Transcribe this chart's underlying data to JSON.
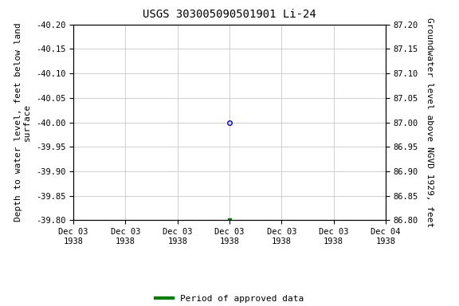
{
  "title": "USGS 303005090501901 Li-24",
  "point_x_num": 3,
  "point_y": -40.0,
  "marker_style": "o",
  "marker_size": 4,
  "marker_facecolor": "none",
  "marker_edgecolor": "#0000cc",
  "green_marker_x_num": 3,
  "green_marker_y": -39.8,
  "green_marker_color": "#008000",
  "green_marker_style": "s",
  "green_marker_size": 3,
  "ylim_left": [
    -39.8,
    -40.2
  ],
  "ylim_right": [
    86.8,
    87.2
  ],
  "yticks_left": [
    -39.8,
    -39.85,
    -39.9,
    -39.95,
    -40.0,
    -40.05,
    -40.1,
    -40.15,
    -40.2
  ],
  "yticks_right": [
    86.8,
    86.85,
    86.9,
    86.95,
    87.0,
    87.05,
    87.1,
    87.15,
    87.2
  ],
  "ylabel_left": "Depth to water level, feet below land\nsurface",
  "ylabel_right": "Groundwater level above NGVD 1929, feet",
  "xtick_labels": [
    "Dec 03\n1938",
    "Dec 03\n1938",
    "Dec 03\n1938",
    "Dec 03\n1938",
    "Dec 03\n1938",
    "Dec 03\n1938",
    "Dec 04\n1938"
  ],
  "xlim": [
    0,
    6
  ],
  "xtick_positions": [
    0,
    1,
    2,
    3,
    4,
    5,
    6
  ],
  "legend_label": "Period of approved data",
  "legend_color": "#008000",
  "bg_color": "#ffffff",
  "grid_color": "#c8c8c8",
  "title_fontsize": 10,
  "tick_fontsize": 7.5,
  "label_fontsize": 8,
  "ylabel_right_fontsize": 8
}
